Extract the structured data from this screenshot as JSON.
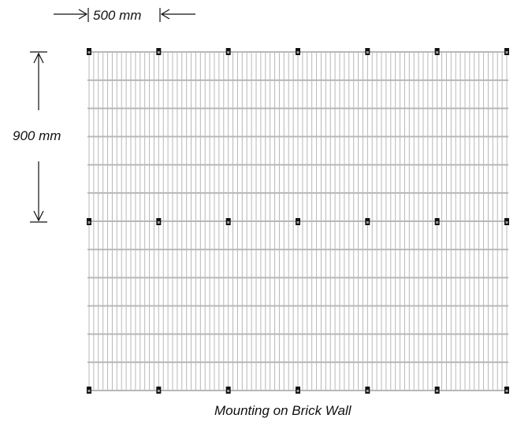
{
  "dimensions": {
    "horizontal_spacing": "500 mm",
    "vertical_spacing": "900 mm"
  },
  "caption": "Mounting on Brick Wall",
  "colors": {
    "grid_line": "#b8b8b8",
    "bracket": "#111111",
    "annotation": "#111111"
  }
}
